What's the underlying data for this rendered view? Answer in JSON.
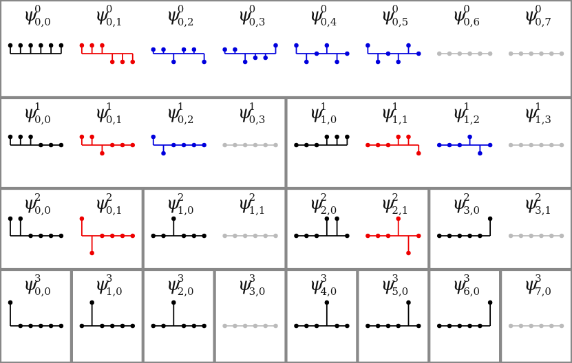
{
  "colors": {
    "black": "#000000",
    "red": "#ee0000",
    "blue": "#0000dd",
    "gray": "#bbbbbb",
    "border": "#888888"
  },
  "rows": [
    {
      "panels": [
        {
          "cells": [
            {
              "label": {
                "symbol": "ψ",
                "sup": "0",
                "sub": "0,0"
              },
              "color": "black",
              "values": [
                1,
                1,
                1,
                1,
                1,
                1
              ]
            },
            {
              "label": {
                "symbol": "ψ",
                "sup": "0",
                "sub": "0,1"
              },
              "color": "red",
              "values": [
                1,
                1,
                1,
                -1,
                -1,
                -1
              ]
            },
            {
              "label": {
                "symbol": "ψ",
                "sup": "0",
                "sub": "0,2"
              },
              "color": "blue",
              "values": [
                0.5,
                0.5,
                -1,
                0.5,
                0.5,
                -1
              ]
            },
            {
              "label": {
                "symbol": "ψ",
                "sup": "0",
                "sub": "0,3"
              },
              "color": "blue",
              "values": [
                0.5,
                0.5,
                -1,
                -0.5,
                -0.5,
                1
              ]
            },
            {
              "label": {
                "symbol": "ψ",
                "sup": "0",
                "sub": "0,4"
              },
              "color": "blue",
              "values": [
                1,
                -1,
                0,
                1,
                -1,
                0
              ]
            },
            {
              "label": {
                "symbol": "ψ",
                "sup": "0",
                "sub": "0,5"
              },
              "color": "blue",
              "values": [
                1,
                -1,
                0,
                -1,
                1,
                0
              ]
            },
            {
              "label": {
                "symbol": "ψ",
                "sup": "0",
                "sub": "0,6"
              },
              "color": "gray",
              "values": [
                0,
                0,
                0,
                0,
                0,
                0
              ]
            },
            {
              "label": {
                "symbol": "ψ",
                "sup": "0",
                "sub": "0,7"
              },
              "color": "gray",
              "values": [
                0,
                0,
                0,
                0,
                0,
                0
              ]
            }
          ]
        }
      ]
    },
    {
      "panels": [
        {
          "cells": [
            {
              "label": {
                "symbol": "ψ",
                "sup": "1",
                "sub": "0,0"
              },
              "color": "black",
              "values": [
                1,
                1,
                1,
                0,
                0,
                0
              ]
            },
            {
              "label": {
                "symbol": "ψ",
                "sup": "1",
                "sub": "0,1"
              },
              "color": "red",
              "values": [
                1,
                1,
                -1,
                0,
                0,
                0
              ]
            },
            {
              "label": {
                "symbol": "ψ",
                "sup": "1",
                "sub": "0,2"
              },
              "color": "blue",
              "values": [
                1,
                -1,
                0,
                0,
                0,
                0
              ]
            },
            {
              "label": {
                "symbol": "ψ",
                "sup": "1",
                "sub": "0,3"
              },
              "color": "gray",
              "values": [
                0,
                0,
                0,
                0,
                0,
                0
              ]
            }
          ]
        },
        {
          "cells": [
            {
              "label": {
                "symbol": "ψ",
                "sup": "1",
                "sub": "1,0"
              },
              "color": "black",
              "values": [
                0,
                0,
                0,
                1,
                1,
                1
              ]
            },
            {
              "label": {
                "symbol": "ψ",
                "sup": "1",
                "sub": "1,1"
              },
              "color": "red",
              "values": [
                0,
                0,
                0,
                1,
                1,
                -1
              ]
            },
            {
              "label": {
                "symbol": "ψ",
                "sup": "1",
                "sub": "1,2"
              },
              "color": "blue",
              "values": [
                0,
                0,
                0,
                1,
                -1,
                0
              ]
            },
            {
              "label": {
                "symbol": "ψ",
                "sup": "1",
                "sub": "1,3"
              },
              "color": "gray",
              "values": [
                0,
                0,
                0,
                0,
                0,
                0
              ]
            }
          ]
        }
      ]
    },
    {
      "panels": [
        {
          "cells": [
            {
              "label": {
                "symbol": "ψ",
                "sup": "2",
                "sub": "0,0"
              },
              "color": "black",
              "values": [
                1,
                1,
                0,
                0,
                0,
                0
              ]
            },
            {
              "label": {
                "symbol": "ψ",
                "sup": "2",
                "sub": "0,1"
              },
              "color": "red",
              "values": [
                1,
                -1,
                0,
                0,
                0,
                0
              ]
            }
          ]
        },
        {
          "cells": [
            {
              "label": {
                "symbol": "ψ",
                "sup": "2",
                "sub": "1,0"
              },
              "color": "black",
              "values": [
                0,
                0,
                1,
                0,
                0,
                0
              ]
            },
            {
              "label": {
                "symbol": "ψ",
                "sup": "2",
                "sub": "1,1"
              },
              "color": "gray",
              "values": [
                0,
                0,
                0,
                0,
                0,
                0
              ]
            }
          ]
        },
        {
          "cells": [
            {
              "label": {
                "symbol": "ψ",
                "sup": "2",
                "sub": "2,0"
              },
              "color": "black",
              "values": [
                0,
                0,
                0,
                1,
                1,
                0
              ]
            },
            {
              "label": {
                "symbol": "ψ",
                "sup": "2",
                "sub": "2,1"
              },
              "color": "red",
              "values": [
                0,
                0,
                0,
                1,
                -1,
                0
              ]
            }
          ]
        },
        {
          "cells": [
            {
              "label": {
                "symbol": "ψ",
                "sup": "2",
                "sub": "3,0"
              },
              "color": "black",
              "values": [
                0,
                0,
                0,
                0,
                0,
                1
              ]
            },
            {
              "label": {
                "symbol": "ψ",
                "sup": "2",
                "sub": "3,1"
              },
              "color": "gray",
              "values": [
                0,
                0,
                0,
                0,
                0,
                0
              ]
            }
          ]
        }
      ]
    },
    {
      "panels": [
        {
          "cells": [
            {
              "label": {
                "symbol": "ψ",
                "sup": "3",
                "sub": "0,0"
              },
              "color": "black",
              "values": [
                1,
                0,
                0,
                0,
                0,
                0
              ]
            }
          ]
        },
        {
          "cells": [
            {
              "label": {
                "symbol": "ψ",
                "sup": "3",
                "sub": "1,0"
              },
              "color": "black",
              "values": [
                0,
                1,
                0,
                0,
                0,
                0
              ]
            }
          ]
        },
        {
          "cells": [
            {
              "label": {
                "symbol": "ψ",
                "sup": "3",
                "sub": "2,0"
              },
              "color": "black",
              "values": [
                0,
                0,
                1,
                0,
                0,
                0
              ]
            }
          ]
        },
        {
          "cells": [
            {
              "label": {
                "symbol": "ψ",
                "sup": "3",
                "sub": "3,0"
              },
              "color": "gray",
              "values": [
                0,
                0,
                0,
                0,
                0,
                0
              ]
            }
          ]
        },
        {
          "cells": [
            {
              "label": {
                "symbol": "ψ",
                "sup": "3",
                "sub": "4,0"
              },
              "color": "black",
              "values": [
                0,
                0,
                0,
                1,
                0,
                0
              ]
            }
          ]
        },
        {
          "cells": [
            {
              "label": {
                "symbol": "ψ",
                "sup": "3",
                "sub": "5,0"
              },
              "color": "black",
              "values": [
                0,
                0,
                0,
                0,
                1,
                0
              ]
            }
          ]
        },
        {
          "cells": [
            {
              "label": {
                "symbol": "ψ",
                "sup": "3",
                "sub": "6,0"
              },
              "color": "black",
              "values": [
                0,
                0,
                0,
                0,
                0,
                1
              ]
            }
          ]
        },
        {
          "cells": [
            {
              "label": {
                "symbol": "ψ",
                "sup": "3",
                "sub": "7,0"
              },
              "color": "gray",
              "values": [
                0,
                0,
                0,
                0,
                0,
                0
              ]
            }
          ]
        }
      ]
    }
  ]
}
